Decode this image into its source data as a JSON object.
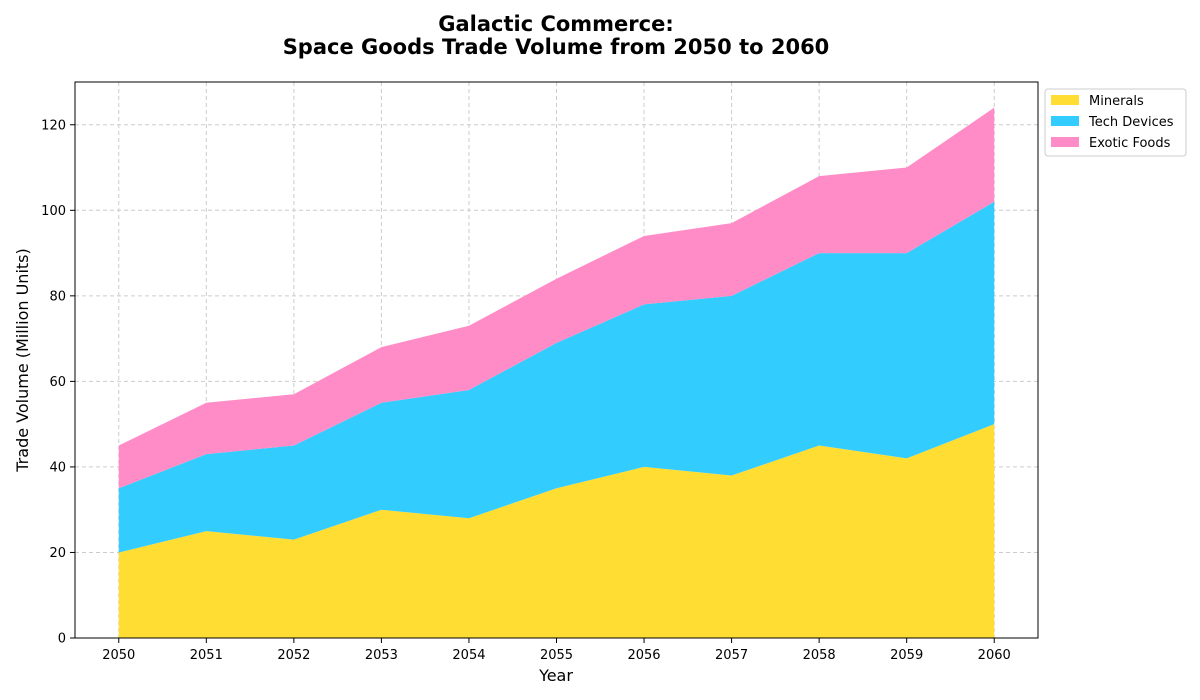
{
  "chart_data": {
    "type": "area",
    "stacked": true,
    "title": "Galactic Commerce:",
    "subtitle": "Space Goods Trade Volume from 2050 to 2060",
    "xlabel": "Year",
    "ylabel": "Trade Volume (Million Units)",
    "x": [
      "2050",
      "2051",
      "2052",
      "2053",
      "2054",
      "2055",
      "2056",
      "2057",
      "2058",
      "2059",
      "2060"
    ],
    "xlim": [
      2049.5,
      2060.5
    ],
    "ylim": [
      0,
      130
    ],
    "yticks": [
      0,
      20,
      40,
      60,
      80,
      100,
      120
    ],
    "grid": true,
    "legend_position": "outside-top-right",
    "series": [
      {
        "name": "Minerals",
        "color": "#FFDD33",
        "values": [
          20,
          25,
          23,
          30,
          28,
          35,
          40,
          38,
          45,
          42,
          50
        ]
      },
      {
        "name": "Tech Devices",
        "color": "#33CCFF",
        "values": [
          15,
          18,
          22,
          25,
          30,
          34,
          38,
          42,
          45,
          48,
          52
        ]
      },
      {
        "name": "Exotic Foods",
        "color": "#FF8CC6",
        "values": [
          10,
          12,
          12,
          13,
          15,
          15,
          16,
          17,
          18,
          20,
          22
        ]
      }
    ]
  }
}
